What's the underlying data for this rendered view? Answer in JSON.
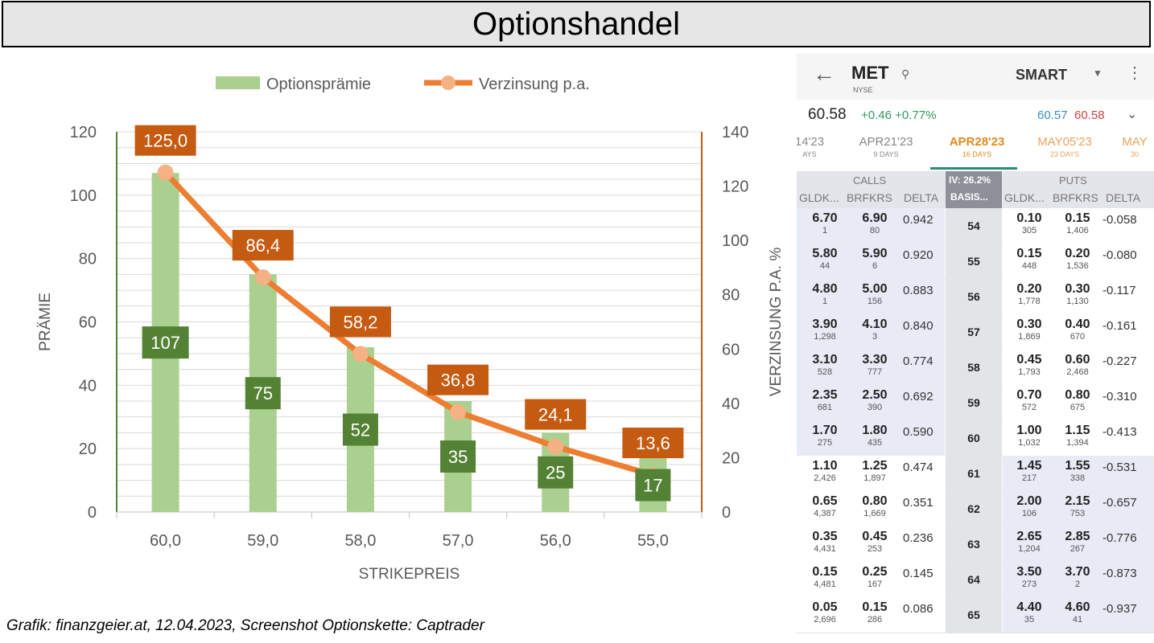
{
  "title": "Optionshandel",
  "caption": "Grafik: finanzgeier.at, 12.04.2023, Screenshot Optionskette: Captrader",
  "colors": {
    "bar": "#a9d08e",
    "bar_label_bg": "#548235",
    "line": "#ed7d31",
    "marker": "#f4b183",
    "line_label_bg": "#c55a11"
  },
  "chart_data": {
    "type": "bar",
    "categories": [
      "60,0",
      "59,0",
      "58,0",
      "57,0",
      "56,0",
      "55,0"
    ],
    "xlabel": "STRIKEPREIS",
    "ylabel": "PRÄMIE",
    "y2label": "VERZINSUNG P.A. %",
    "ylim": [
      0,
      120
    ],
    "y2lim": [
      0,
      140
    ],
    "yticks": [
      "0",
      "20",
      "40",
      "60",
      "80",
      "100",
      "120"
    ],
    "y2ticks": [
      "0",
      "20",
      "40",
      "60",
      "80",
      "100",
      "120",
      "140"
    ],
    "grid": true,
    "legend_position": "top",
    "series": [
      {
        "name": "Optionsprämie",
        "type": "bar",
        "axis": "left",
        "values": [
          107,
          75,
          52,
          35,
          25,
          17
        ],
        "labels": [
          "107",
          "75",
          "52",
          "35",
          "25",
          "17"
        ]
      },
      {
        "name": "Verzinsung p.a.",
        "type": "line",
        "axis": "right",
        "values": [
          125.0,
          86.4,
          58.2,
          36.8,
          24.1,
          13.6
        ],
        "labels": [
          "125,0",
          "86,4",
          "58,2",
          "36,8",
          "24,1",
          "13,6"
        ]
      }
    ]
  },
  "screenshot": {
    "symbol": "MET",
    "exchange": "NYSE",
    "routing": "SMART",
    "last": "60.58",
    "change": "+0.46 +0.77%",
    "bid": "60.57",
    "ask": "60.58",
    "expirations": [
      {
        "date": "14'23",
        "days": "AYS"
      },
      {
        "date": "APR21'23",
        "days": "9 DAYS"
      },
      {
        "date": "APR28'23",
        "days": "16 DAYS"
      },
      {
        "date": "MAY05'23",
        "days": "23 DAYS"
      },
      {
        "date": "MAY",
        "days": "30"
      }
    ],
    "calls_label": "CALLS",
    "iv_label": "IV: 26.2%",
    "puts_label": "PUTS",
    "col_bid": "GLDK...",
    "col_ask": "BRFKRS",
    "col_delta": "DELTA",
    "col_basis": "BASIS...",
    "rows": [
      {
        "strike": "54",
        "cb": "6.70",
        "cbs": "1",
        "ca": "6.90",
        "cas": "80",
        "cd": "0.942",
        "pb": "0.10",
        "pbs": "305",
        "pa": "0.15",
        "pas": "1,406",
        "pd": "-0.058"
      },
      {
        "strike": "55",
        "cb": "5.80",
        "cbs": "44",
        "ca": "5.90",
        "cas": "6",
        "cd": "0.920",
        "pb": "0.15",
        "pbs": "448",
        "pa": "0.20",
        "pas": "1,536",
        "pd": "-0.080"
      },
      {
        "strike": "56",
        "cb": "4.80",
        "cbs": "1",
        "ca": "5.00",
        "cas": "156",
        "cd": "0.883",
        "pb": "0.20",
        "pbs": "1,778",
        "pa": "0.30",
        "pas": "1,130",
        "pd": "-0.117"
      },
      {
        "strike": "57",
        "cb": "3.90",
        "cbs": "1,298",
        "ca": "4.10",
        "cas": "3",
        "cd": "0.840",
        "pb": "0.30",
        "pbs": "1,869",
        "pa": "0.40",
        "pas": "670",
        "pd": "-0.161"
      },
      {
        "strike": "58",
        "cb": "3.10",
        "cbs": "528",
        "ca": "3.30",
        "cas": "777",
        "cd": "0.774",
        "pb": "0.45",
        "pbs": "1,793",
        "pa": "0.60",
        "pas": "2,468",
        "pd": "-0.227"
      },
      {
        "strike": "59",
        "cb": "2.35",
        "cbs": "681",
        "ca": "2.50",
        "cas": "390",
        "cd": "0.692",
        "pb": "0.70",
        "pbs": "572",
        "pa": "0.80",
        "pas": "675",
        "pd": "-0.310"
      },
      {
        "strike": "60",
        "cb": "1.70",
        "cbs": "275",
        "ca": "1.80",
        "cas": "435",
        "cd": "0.590",
        "pb": "1.00",
        "pbs": "1,032",
        "pa": "1.15",
        "pas": "1,394",
        "pd": "-0.413"
      },
      {
        "strike": "61",
        "cb": "1.10",
        "cbs": "2,426",
        "ca": "1.25",
        "cas": "1,897",
        "cd": "0.474",
        "pb": "1.45",
        "pbs": "217",
        "pa": "1.55",
        "pas": "338",
        "pd": "-0.531"
      },
      {
        "strike": "62",
        "cb": "0.65",
        "cbs": "4,387",
        "ca": "0.80",
        "cas": "1,669",
        "cd": "0.351",
        "pb": "2.00",
        "pbs": "106",
        "pa": "2.15",
        "pas": "753",
        "pd": "-0.657"
      },
      {
        "strike": "63",
        "cb": "0.35",
        "cbs": "4,431",
        "ca": "0.45",
        "cas": "253",
        "cd": "0.236",
        "pb": "2.65",
        "pbs": "1,204",
        "pa": "2.85",
        "pas": "267",
        "pd": "-0.776"
      },
      {
        "strike": "64",
        "cb": "0.15",
        "cbs": "4,481",
        "ca": "0.25",
        "cas": "167",
        "cd": "0.145",
        "pb": "3.50",
        "pbs": "273",
        "pa": "3.70",
        "pas": "2",
        "pd": "-0.873"
      },
      {
        "strike": "65",
        "cb": "0.05",
        "cbs": "2,696",
        "ca": "0.15",
        "cas": "286",
        "cd": "0.086",
        "pb": "4.40",
        "pbs": "35",
        "pa": "4.60",
        "pas": "41",
        "pd": "-0.937"
      }
    ]
  }
}
